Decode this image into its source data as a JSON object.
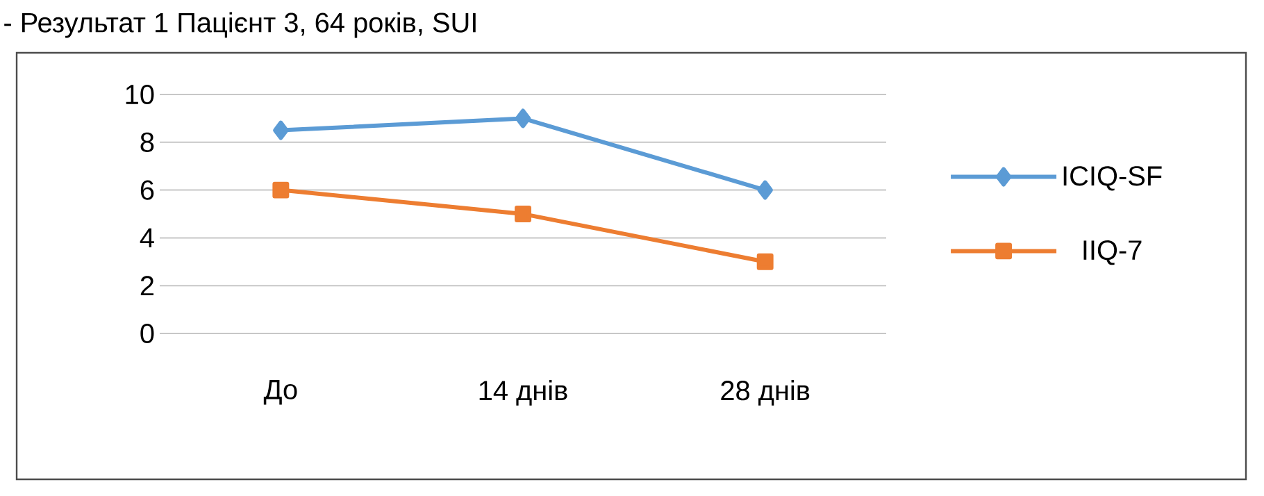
{
  "chart_data": {
    "type": "line",
    "title": "- Результат 1    Пацієнт 3, 64 років, SUI",
    "categories": [
      "До",
      "14 днів",
      "28 днів"
    ],
    "series": [
      {
        "name": "ICIQ-SF",
        "color": "#5b9bd5",
        "marker": "diamond",
        "values": [
          8.5,
          9,
          6
        ]
      },
      {
        "name": "IIQ-7",
        "color": "#ed7d31",
        "marker": "square",
        "values": [
          6,
          5,
          3
        ]
      }
    ],
    "ylim": [
      0,
      10
    ],
    "yticks": [
      0,
      2,
      4,
      6,
      8,
      10
    ],
    "grid": "y",
    "legend": "right",
    "line_style": "solid"
  }
}
